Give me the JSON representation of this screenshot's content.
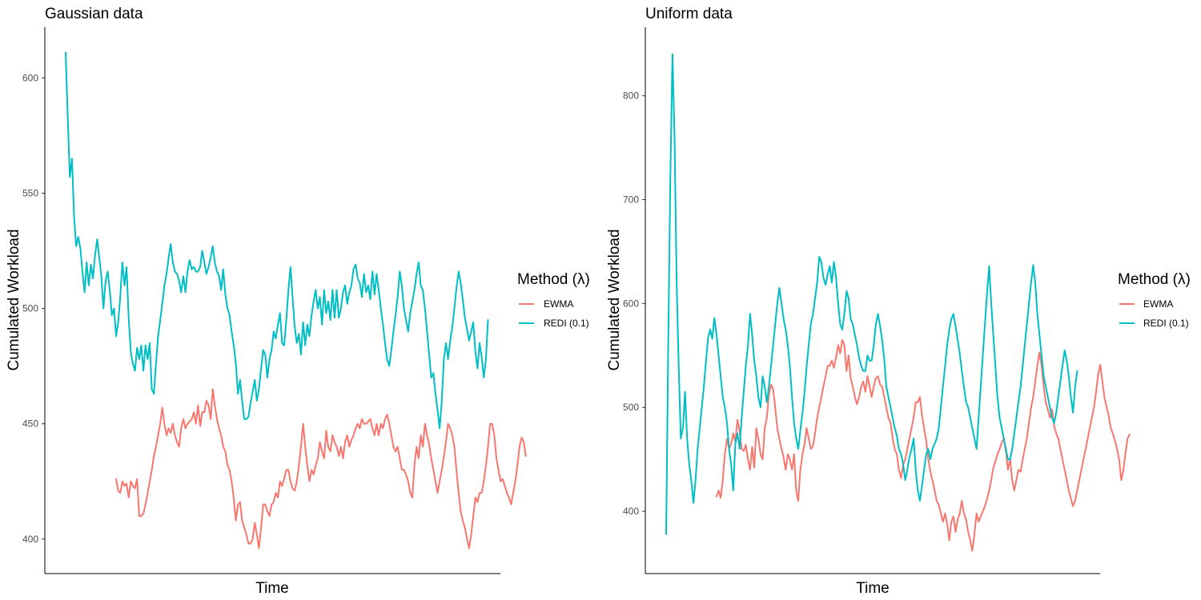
{
  "chart_data": [
    {
      "type": "line",
      "title": "Gaussian data",
      "xlabel": "Time",
      "ylabel": "Cumulated Workload",
      "ylim": [
        385,
        622
      ],
      "xlim": [
        0,
        197
      ],
      "y_ticks": [
        400,
        450,
        500,
        550,
        600
      ],
      "legend": {
        "title": "Method (λ)",
        "position": "right"
      },
      "series": [
        {
          "name": "EWMA",
          "color": "#F8766D",
          "x_start": 24,
          "values": [
            426,
            421,
            420,
            425,
            423,
            424,
            418,
            425,
            423,
            422,
            426,
            410,
            410,
            411,
            415,
            420,
            425,
            430,
            436,
            440,
            445,
            450,
            457,
            450,
            445,
            448,
            446,
            450,
            445,
            442,
            440,
            448,
            452,
            448,
            450,
            451,
            452,
            455,
            450,
            458,
            449,
            455,
            455,
            460,
            458,
            452,
            465,
            458,
            452,
            448,
            445,
            440,
            438,
            432,
            430,
            425,
            418,
            408,
            415,
            416,
            408,
            405,
            402,
            398,
            398,
            400,
            407,
            402,
            396,
            405,
            415,
            415,
            412,
            410,
            415,
            416,
            420,
            418,
            425,
            423,
            426,
            430,
            430,
            425,
            422,
            421,
            425,
            432,
            440,
            450,
            440,
            432,
            425,
            430,
            428,
            432,
            435,
            442,
            438,
            435,
            447,
            440,
            438,
            445,
            442,
            440,
            436,
            440,
            435,
            442,
            445,
            440,
            443,
            445,
            448,
            450,
            448,
            452,
            450,
            450,
            451,
            452,
            448,
            445,
            450,
            445,
            450,
            448,
            452,
            454,
            450,
            445,
            440,
            438,
            440,
            435,
            430,
            430,
            428,
            425,
            420,
            418,
            432,
            440,
            435,
            445,
            440,
            450,
            445,
            441,
            435,
            430,
            425,
            420,
            425,
            430,
            436,
            442,
            450,
            448,
            445,
            440,
            430,
            420,
            412,
            408,
            405,
            400,
            396,
            402,
            410,
            418,
            416,
            420,
            420,
            425,
            432,
            440,
            450,
            450,
            445,
            435,
            430,
            425,
            426,
            423,
            420,
            418,
            415,
            420,
            425,
            432,
            440,
            444,
            442,
            436
          ]
        },
        {
          "name": "REDI (0.1)",
          "color": "#00BFC4",
          "x_start": 0,
          "values": [
            611,
            583,
            557,
            565,
            540,
            527,
            531,
            526,
            516,
            507,
            520,
            510,
            519,
            513,
            523,
            530,
            522,
            514,
            500,
            512,
            516,
            508,
            497,
            500,
            488,
            494,
            505,
            520,
            510,
            518,
            496,
            481,
            476,
            473,
            483,
            478,
            484,
            473,
            484,
            478,
            485,
            465,
            463,
            476,
            488,
            495,
            502,
            510,
            515,
            522,
            528,
            520,
            516,
            515,
            512,
            507,
            514,
            507,
            516,
            521,
            517,
            518,
            516,
            516,
            518,
            525,
            520,
            515,
            518,
            522,
            527,
            520,
            516,
            514,
            508,
            517,
            506,
            500,
            497,
            490,
            484,
            476,
            463,
            469,
            460,
            452,
            452,
            453,
            459,
            464,
            469,
            460,
            465,
            474,
            482,
            480,
            470,
            478,
            482,
            490,
            487,
            493,
            498,
            485,
            484,
            495,
            508,
            518,
            505,
            492,
            485,
            489,
            480,
            494,
            484,
            493,
            488,
            497,
            503,
            508,
            500,
            505,
            493,
            508,
            498,
            503,
            495,
            508,
            496,
            508,
            496,
            500,
            507,
            510,
            502,
            507,
            510,
            517,
            519,
            513,
            511,
            505,
            515,
            507,
            510,
            504,
            516,
            506,
            515,
            508,
            500,
            493,
            485,
            478,
            475,
            482,
            490,
            497,
            505,
            516,
            510,
            500,
            495,
            490,
            498,
            503,
            508,
            515,
            520,
            510,
            508,
            500,
            490,
            480,
            470,
            472,
            463,
            456,
            448,
            460,
            478,
            485,
            478,
            486,
            492,
            500,
            509,
            516,
            511,
            504,
            496,
            491,
            486,
            490,
            494,
            481,
            474,
            485,
            479,
            470,
            478,
            495
          ]
        }
      ]
    },
    {
      "type": "line",
      "title": "Uniform data",
      "xlabel": "Time",
      "ylabel": "Cumulated Workload",
      "ylim": [
        340,
        866
      ],
      "xlim": [
        0,
        197
      ],
      "y_ticks": [
        400,
        500,
        600,
        700,
        800
      ],
      "legend": {
        "title": "Method (λ)",
        "position": "right"
      },
      "series": [
        {
          "name": "EWMA",
          "color": "#F8766D",
          "x_start": 24,
          "values": [
            414,
            420,
            413,
            430,
            455,
            470,
            460,
            465,
            475,
            467,
            488,
            478,
            460,
            458,
            464,
            450,
            440,
            462,
            442,
            480,
            470,
            455,
            450,
            480,
            490,
            512,
            522,
            518,
            500,
            480,
            470,
            460,
            452,
            440,
            455,
            450,
            440,
            455,
            420,
            410,
            440,
            455,
            465,
            480,
            470,
            460,
            463,
            475,
            490,
            500,
            510,
            520,
            530,
            540,
            540,
            545,
            538,
            548,
            560,
            552,
            565,
            560,
            535,
            550,
            528,
            520,
            510,
            503,
            510,
            520,
            525,
            515,
            530,
            520,
            510,
            520,
            528,
            530,
            522,
            520,
            510,
            500,
            490,
            485,
            470,
            460,
            455,
            440,
            432,
            445,
            450,
            460,
            470,
            480,
            490,
            505,
            505,
            510,
            492,
            480,
            468,
            450,
            438,
            430,
            420,
            410,
            406,
            398,
            390,
            398,
            388,
            372,
            390,
            395,
            380,
            392,
            398,
            410,
            398,
            392,
            380,
            372,
            362,
            378,
            398,
            390,
            395,
            400,
            405,
            412,
            420,
            430,
            442,
            448,
            455,
            460,
            466,
            470,
            458,
            440,
            450,
            430,
            420,
            430,
            440,
            438,
            450,
            460,
            470,
            485,
            500,
            510,
            525,
            540,
            553,
            540,
            520,
            505,
            498,
            490,
            498,
            482,
            475,
            470,
            460,
            450,
            440,
            430,
            420,
            412,
            405,
            410,
            420,
            430,
            440,
            450,
            460,
            470,
            480,
            490,
            500,
            515,
            532,
            541,
            525,
            510,
            500,
            492,
            480,
            475,
            468,
            460,
            450,
            430,
            440,
            455,
            470,
            474
          ]
        },
        {
          "name": "REDI (0.1)",
          "color": "#00BFC4",
          "x_start": 0,
          "values": [
            378,
            560,
            720,
            840,
            760,
            620,
            540,
            470,
            480,
            515,
            470,
            445,
            430,
            408,
            430,
            460,
            480,
            500,
            520,
            545,
            567,
            575,
            566,
            586,
            570,
            550,
            530,
            510,
            500,
            485,
            460,
            445,
            420,
            465,
            475,
            460,
            490,
            515,
            540,
            560,
            590,
            570,
            545,
            530,
            510,
            500,
            530,
            520,
            505,
            520,
            540,
            560,
            580,
            600,
            615,
            600,
            585,
            575,
            560,
            540,
            510,
            485,
            470,
            460,
            478,
            495,
            515,
            540,
            560,
            580,
            590,
            605,
            620,
            645,
            640,
            625,
            618,
            628,
            636,
            620,
            640,
            625,
            600,
            580,
            575,
            590,
            612,
            605,
            585,
            580,
            570,
            560,
            548,
            540,
            535,
            535,
            550,
            545,
            545,
            560,
            580,
            590,
            578,
            565,
            546,
            520,
            510,
            500,
            490,
            480,
            473,
            460,
            455,
            445,
            430,
            440,
            452,
            460,
            470,
            440,
            420,
            410,
            425,
            440,
            455,
            460,
            450,
            460,
            465,
            470,
            480,
            500,
            520,
            540,
            560,
            575,
            585,
            590,
            578,
            565,
            552,
            535,
            520,
            505,
            500,
            490,
            480,
            470,
            460,
            490,
            520,
            550,
            580,
            610,
            636,
            600,
            570,
            540,
            510,
            490,
            480,
            470,
            460,
            450,
            450,
            460,
            475,
            490,
            505,
            520,
            540,
            560,
            580,
            600,
            620,
            637,
            620,
            590,
            570,
            550,
            530,
            520,
            510,
            500,
            490,
            485,
            495,
            510,
            525,
            540,
            555,
            545,
            530,
            510,
            495,
            520,
            535
          ]
        }
      ]
    }
  ]
}
